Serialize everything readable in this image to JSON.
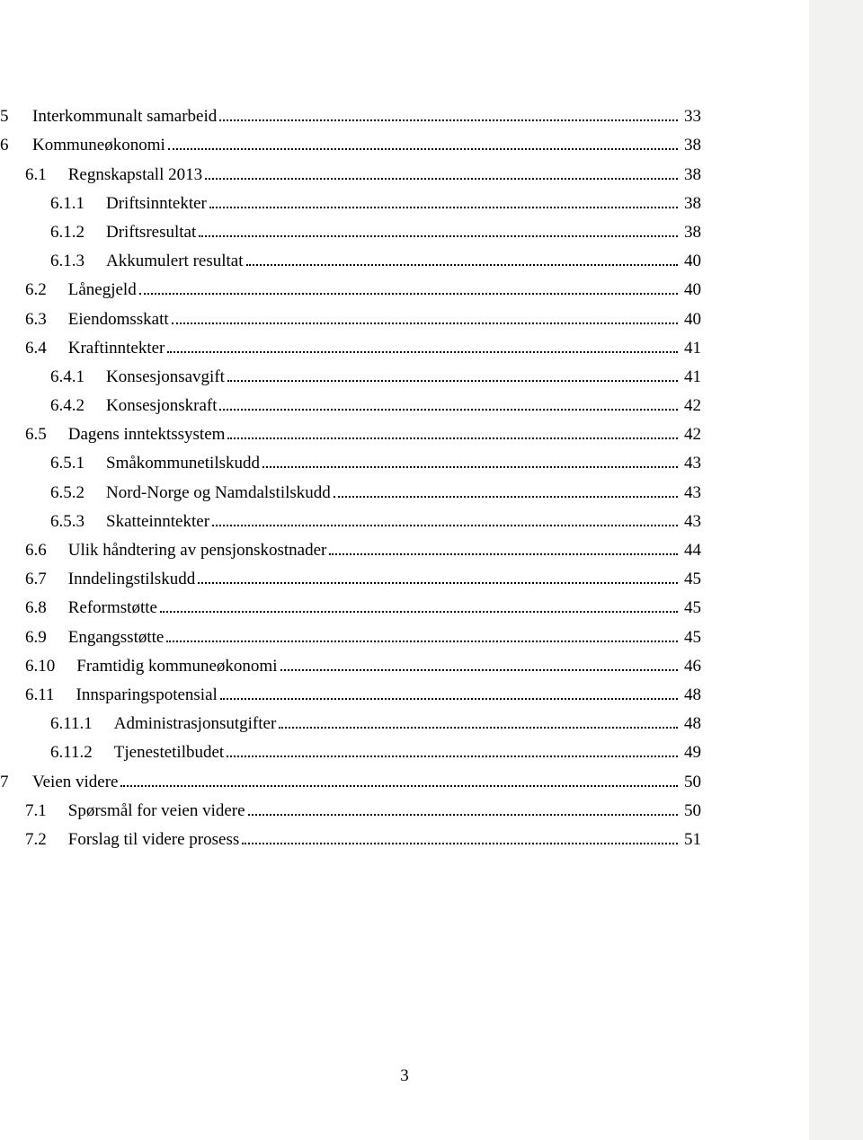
{
  "page_number": "3",
  "colors": {
    "page_bg": "#ffffff",
    "sidebar_bg": "#f2f2f0",
    "text": "#000000",
    "dots": "#000000"
  },
  "typography": {
    "family": "Times New Roman",
    "size_pt": 14
  },
  "toc": [
    {
      "level": 0,
      "num": "5",
      "title": "Interkommunalt samarbeid",
      "page": "33"
    },
    {
      "level": 0,
      "num": "6",
      "title": "Kommuneøkonomi",
      "page": "38"
    },
    {
      "level": 1,
      "num": "6.1",
      "title": "Regnskapstall 2013",
      "page": "38"
    },
    {
      "level": 2,
      "num": "6.1.1",
      "title": "Driftsinntekter",
      "page": "38"
    },
    {
      "level": 2,
      "num": "6.1.2",
      "title": "Driftsresultat",
      "page": "38"
    },
    {
      "level": 2,
      "num": "6.1.3",
      "title": "Akkumulert resultat",
      "page": "40"
    },
    {
      "level": 1,
      "num": "6.2",
      "title": "Lånegjeld",
      "page": "40"
    },
    {
      "level": 1,
      "num": "6.3",
      "title": "Eiendomsskatt",
      "page": "40"
    },
    {
      "level": 1,
      "num": "6.4",
      "title": "Kraftinntekter",
      "page": "41"
    },
    {
      "level": 2,
      "num": "6.4.1",
      "title": "Konsesjonsavgift",
      "page": "41"
    },
    {
      "level": 2,
      "num": "6.4.2",
      "title": "Konsesjonskraft",
      "page": "42"
    },
    {
      "level": 1,
      "num": "6.5",
      "title": "Dagens inntektssystem",
      "page": "42"
    },
    {
      "level": 2,
      "num": "6.5.1",
      "title": "Småkommunetilskudd",
      "page": "43"
    },
    {
      "level": 2,
      "num": "6.5.2",
      "title": "Nord-Norge og Namdalstilskudd",
      "page": "43"
    },
    {
      "level": 2,
      "num": "6.5.3",
      "title": "Skatteinntekter",
      "page": "43"
    },
    {
      "level": 1,
      "num": "6.6",
      "title": "Ulik håndtering av pensjonskostnader",
      "page": "44"
    },
    {
      "level": 1,
      "num": "6.7",
      "title": "Inndelingstilskudd",
      "page": "45"
    },
    {
      "level": 1,
      "num": "6.8",
      "title": "Reformstøtte",
      "page": "45"
    },
    {
      "level": 1,
      "num": "6.9",
      "title": "Engangsstøtte",
      "page": "45"
    },
    {
      "level": 1,
      "num": "6.10",
      "title": "Framtidig kommuneøkonomi",
      "page": "46"
    },
    {
      "level": 1,
      "num": "6.11",
      "title": "Innsparingspotensial",
      "page": "48"
    },
    {
      "level": 2,
      "num": "6.11.1",
      "title": "Administrasjonsutgifter",
      "page": "48"
    },
    {
      "level": 2,
      "num": "6.11.2",
      "title": "Tjenestetilbudet",
      "page": "49"
    },
    {
      "level": 0,
      "num": "7",
      "title": "Veien videre",
      "page": "50"
    },
    {
      "level": 1,
      "num": "7.1",
      "title": "Spørsmål for veien videre",
      "page": "50"
    },
    {
      "level": 1,
      "num": "7.2",
      "title": "Forslag til videre prosess",
      "page": "51"
    }
  ]
}
